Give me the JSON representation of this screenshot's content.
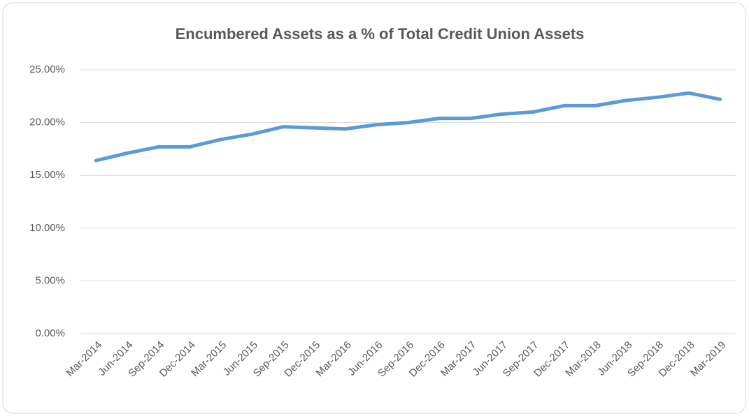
{
  "chart_data": {
    "type": "line",
    "title": "Encumbered Assets as a % of Total Credit Union Assets",
    "categories": [
      "Mar-2014",
      "Jun-2014",
      "Sep-2014",
      "Dec-2014",
      "Mar-2015",
      "Jun-2015",
      "Sep-2015",
      "Dec-2015",
      "Mar-2016",
      "Jun-2016",
      "Sep-2016",
      "Dec-2016",
      "Mar-2017",
      "Jun-2017",
      "Sep-2017",
      "Dec-2017",
      "Mar-2018",
      "Jun-2018",
      "Sep-2018",
      "Dec-2018",
      "Mar-2019"
    ],
    "values": [
      16.4,
      17.1,
      17.7,
      17.7,
      18.4,
      18.9,
      19.6,
      19.5,
      19.4,
      19.8,
      20.0,
      20.4,
      20.4,
      20.8,
      21.0,
      21.6,
      21.6,
      22.1,
      22.4,
      22.8,
      22.2
    ],
    "color": "#5b9bd5",
    "ylim": [
      0,
      25
    ],
    "yticks": [
      {
        "value": 0,
        "label": "0.00%"
      },
      {
        "value": 5,
        "label": "5.00%"
      },
      {
        "value": 10,
        "label": "10.00%"
      },
      {
        "value": 15,
        "label": "15.00%"
      },
      {
        "value": 20,
        "label": "20.00%"
      },
      {
        "value": 25,
        "label": "25.00%"
      }
    ],
    "grid": true
  }
}
